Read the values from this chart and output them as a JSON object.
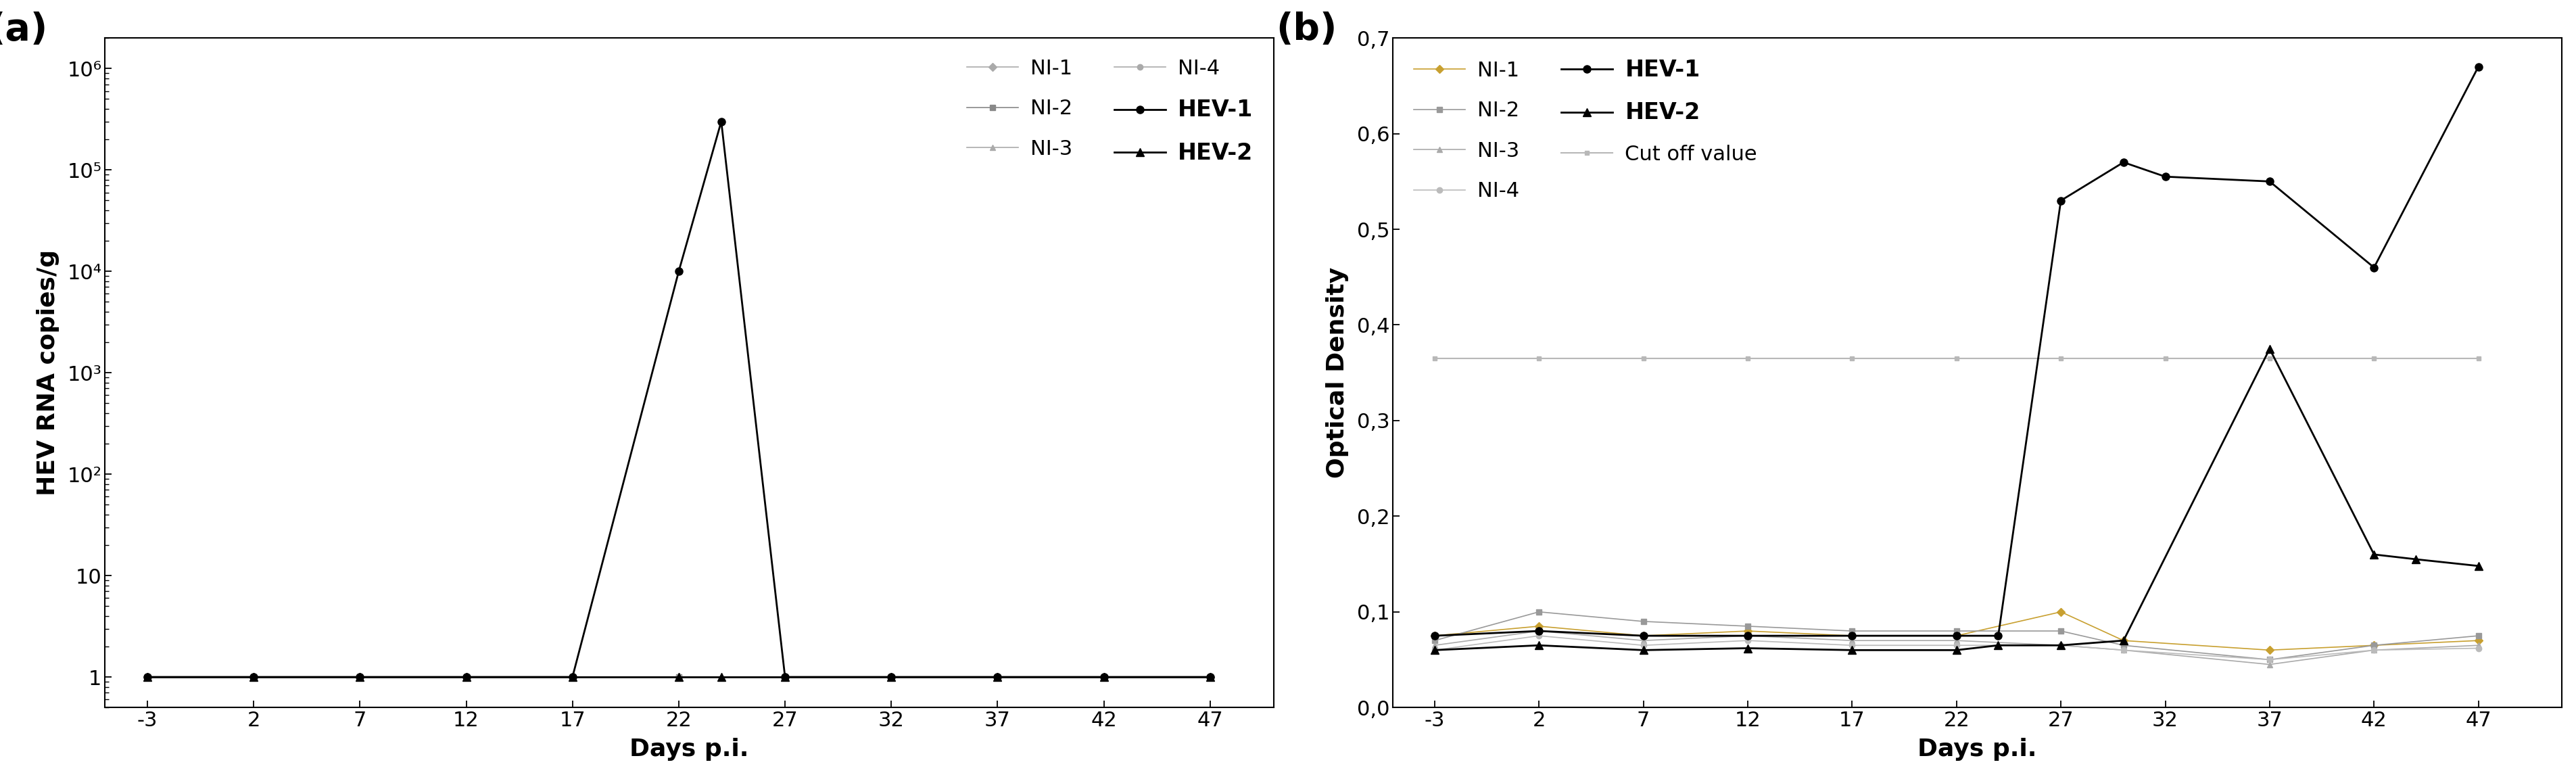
{
  "panel_a": {
    "xlabel": "Days p.i.",
    "ylabel": "HEV RNA copies/g",
    "ylim": [
      0.5,
      2000000
    ],
    "yticks": [
      1,
      10,
      100,
      1000,
      10000,
      100000,
      1000000
    ],
    "ytick_labels": [
      "1",
      "10",
      "10²",
      "10³",
      "10⁴",
      "10⁵",
      "10⁶"
    ],
    "xticks": [
      -3,
      2,
      7,
      12,
      17,
      22,
      27,
      32,
      37,
      42,
      47
    ],
    "series": {
      "NI-1": {
        "x": [
          -3,
          2,
          7,
          12,
          17,
          22,
          27,
          32,
          37,
          42,
          47
        ],
        "y": [
          1,
          1,
          1,
          1,
          1,
          1,
          1,
          1,
          1,
          1,
          1
        ],
        "color": "#aaaaaa",
        "marker": "D",
        "markersize": 6,
        "linewidth": 1.2,
        "zorder": 2
      },
      "NI-2": {
        "x": [
          -3,
          2,
          7,
          12,
          17,
          22,
          27,
          32,
          37,
          42,
          47
        ],
        "y": [
          1,
          1,
          1,
          1,
          1,
          1,
          1,
          1,
          1,
          1,
          1
        ],
        "color": "#888888",
        "marker": "s",
        "markersize": 6,
        "linewidth": 1.2,
        "zorder": 2
      },
      "NI-3": {
        "x": [
          -3,
          2,
          7,
          12,
          17,
          22,
          27,
          32,
          37,
          42,
          47
        ],
        "y": [
          1,
          1,
          1,
          1,
          1,
          1,
          1,
          1,
          1,
          1,
          1
        ],
        "color": "#aaaaaa",
        "marker": "^",
        "markersize": 6,
        "linewidth": 1.2,
        "zorder": 2
      },
      "NI-4": {
        "x": [
          -3,
          2,
          7,
          12,
          17,
          22,
          27,
          32,
          37,
          42,
          47
        ],
        "y": [
          1,
          1,
          1,
          1,
          1,
          1,
          1,
          1,
          1,
          1,
          1
        ],
        "color": "#aaaaaa",
        "marker": "o",
        "markersize": 6,
        "linewidth": 1.2,
        "zorder": 2
      },
      "HEV-1": {
        "x": [
          -3,
          2,
          7,
          12,
          17,
          22,
          24,
          27,
          32,
          37,
          42,
          47
        ],
        "y": [
          1,
          1,
          1,
          1,
          1,
          10000,
          300000,
          1,
          1,
          1,
          1,
          1
        ],
        "color": "#000000",
        "marker": "o",
        "markersize": 8,
        "linewidth": 2.0,
        "zorder": 5
      },
      "HEV-2": {
        "x": [
          -3,
          2,
          7,
          12,
          17,
          22,
          24,
          27,
          32,
          37,
          42,
          47
        ],
        "y": [
          1,
          1,
          1,
          1,
          1,
          1,
          1,
          1,
          1,
          1,
          1,
          1
        ],
        "color": "#000000",
        "marker": "^",
        "markersize": 8,
        "linewidth": 2.0,
        "zorder": 4
      }
    },
    "legend_order": [
      "NI-1",
      "NI-2",
      "NI-3",
      "NI-4",
      "HEV-1",
      "HEV-2"
    ]
  },
  "panel_b": {
    "xlabel": "Days p.i.",
    "ylabel": "Optical Density",
    "ylim": [
      0.0,
      0.7
    ],
    "yticks": [
      0.0,
      0.1,
      0.2,
      0.3,
      0.4,
      0.5,
      0.6,
      0.7
    ],
    "ytick_labels": [
      "0,0",
      "0,1",
      "0,2",
      "0,3",
      "0,4",
      "0,5",
      "0,6",
      "0,7"
    ],
    "xticks": [
      -3,
      2,
      7,
      12,
      17,
      22,
      27,
      32,
      37,
      42,
      47
    ],
    "series": {
      "NI-1": {
        "x": [
          -3,
          2,
          7,
          12,
          17,
          22,
          27,
          30,
          37,
          42,
          47
        ],
        "y": [
          0.075,
          0.085,
          0.075,
          0.08,
          0.075,
          0.075,
          0.1,
          0.07,
          0.06,
          0.065,
          0.07
        ],
        "color": "#c8a030",
        "marker": "D",
        "markersize": 6,
        "linewidth": 1.2,
        "zorder": 2
      },
      "NI-2": {
        "x": [
          -3,
          2,
          7,
          12,
          17,
          22,
          27,
          30,
          37,
          42,
          47
        ],
        "y": [
          0.07,
          0.1,
          0.09,
          0.085,
          0.08,
          0.08,
          0.08,
          0.065,
          0.05,
          0.065,
          0.075
        ],
        "color": "#999999",
        "marker": "s",
        "markersize": 6,
        "linewidth": 1.2,
        "zorder": 2
      },
      "NI-3": {
        "x": [
          -3,
          2,
          7,
          12,
          17,
          22,
          27,
          30,
          37,
          42,
          47
        ],
        "y": [
          0.065,
          0.08,
          0.07,
          0.075,
          0.07,
          0.07,
          0.065,
          0.06,
          0.045,
          0.06,
          0.065
        ],
        "color": "#aaaaaa",
        "marker": "^",
        "markersize": 6,
        "linewidth": 1.2,
        "zorder": 2
      },
      "NI-4": {
        "x": [
          -3,
          2,
          7,
          12,
          17,
          22,
          27,
          30,
          37,
          42,
          47
        ],
        "y": [
          0.06,
          0.075,
          0.065,
          0.07,
          0.065,
          0.065,
          0.065,
          0.06,
          0.05,
          0.06,
          0.062
        ],
        "color": "#bbbbbb",
        "marker": "o",
        "markersize": 6,
        "linewidth": 1.2,
        "zorder": 2
      },
      "HEV-1": {
        "x": [
          -3,
          2,
          7,
          12,
          17,
          22,
          24,
          27,
          30,
          32,
          37,
          42,
          47
        ],
        "y": [
          0.075,
          0.08,
          0.075,
          0.075,
          0.075,
          0.075,
          0.075,
          0.53,
          0.57,
          0.555,
          0.55,
          0.46,
          0.67
        ],
        "color": "#000000",
        "marker": "o",
        "markersize": 8,
        "linewidth": 2.0,
        "zorder": 5
      },
      "HEV-2": {
        "x": [
          -3,
          2,
          7,
          12,
          17,
          22,
          24,
          27,
          30,
          37,
          42,
          44,
          47
        ],
        "y": [
          0.06,
          0.065,
          0.06,
          0.062,
          0.06,
          0.06,
          0.065,
          0.065,
          0.07,
          0.375,
          0.16,
          0.155,
          0.148
        ],
        "color": "#000000",
        "marker": "^",
        "markersize": 8,
        "linewidth": 2.0,
        "zorder": 4
      },
      "Cut off value": {
        "x": [
          -3,
          2,
          7,
          12,
          17,
          22,
          27,
          32,
          37,
          42,
          47
        ],
        "y": [
          0.365,
          0.365,
          0.365,
          0.365,
          0.365,
          0.365,
          0.365,
          0.365,
          0.365,
          0.365,
          0.365
        ],
        "color": "#b8b8b8",
        "marker": "s",
        "markersize": 5,
        "linewidth": 1.5,
        "zorder": 3
      }
    },
    "legend_order": [
      "NI-1",
      "NI-2",
      "NI-3",
      "NI-4",
      "HEV-1",
      "HEV-2",
      "Cut off value"
    ]
  }
}
